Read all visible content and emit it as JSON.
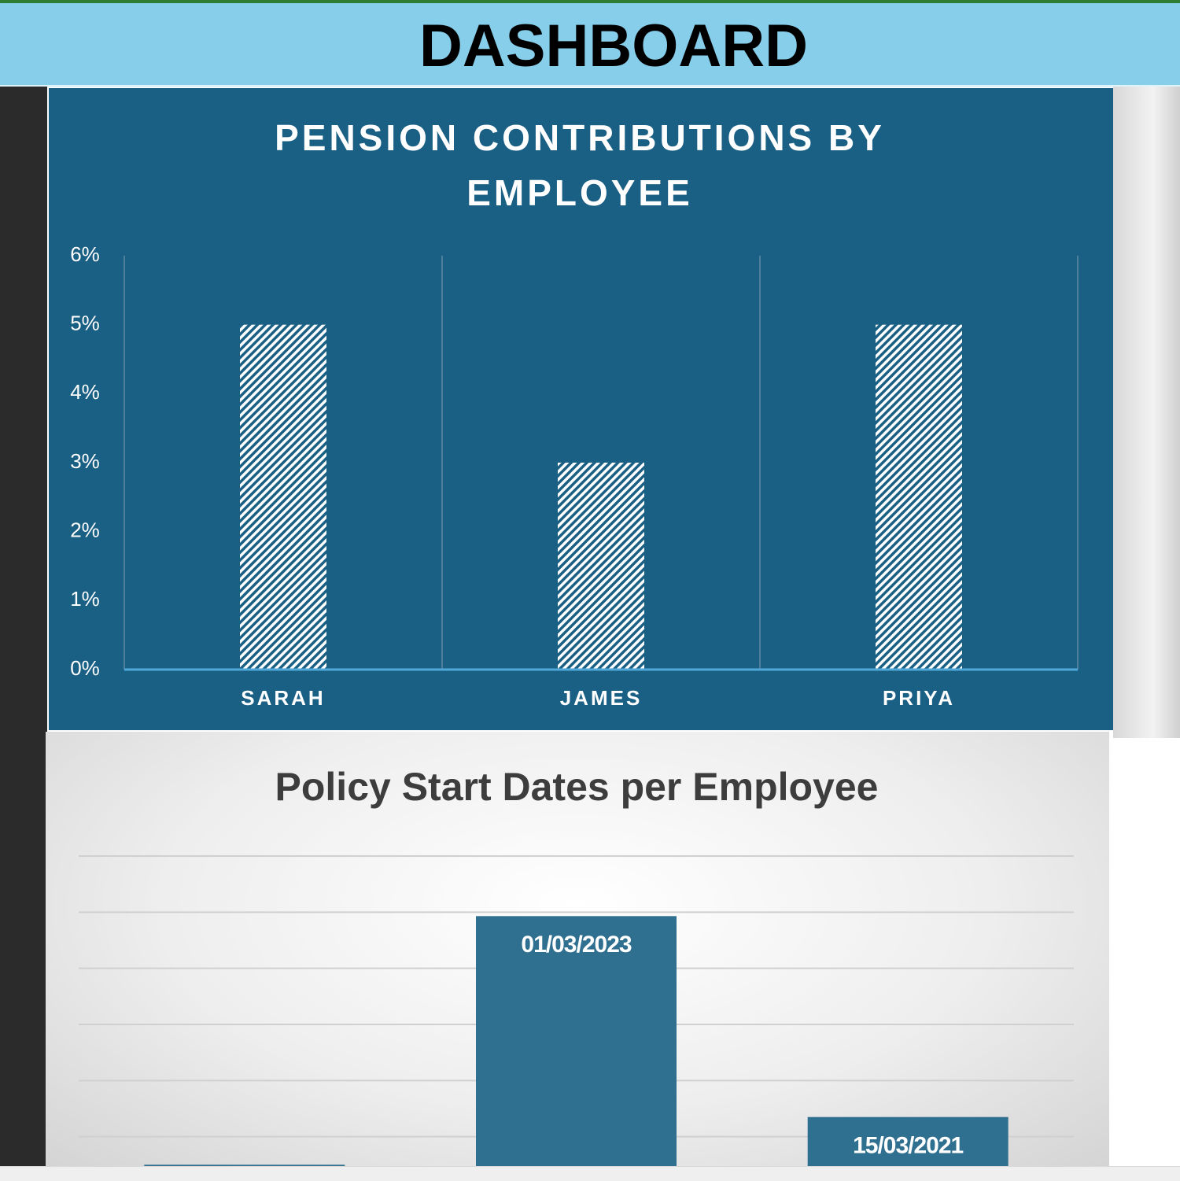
{
  "header": {
    "title": "DASHBOARD"
  },
  "chart_data": [
    {
      "type": "bar",
      "title": "PENSION CONTRIBUTIONS BY EMPLOYEE",
      "categories": [
        "SARAH",
        "JAMES",
        "PRIYA"
      ],
      "values": [
        5,
        3,
        5
      ],
      "color": "#ffffff",
      "fill_pattern": "hatch",
      "category_dividers": true,
      "ylim": [
        0,
        6
      ],
      "yticks": [
        {
          "value": 0,
          "label": "0%"
        },
        {
          "value": 1,
          "label": "1%"
        },
        {
          "value": 2,
          "label": "2%"
        },
        {
          "value": 3,
          "label": "3%"
        },
        {
          "value": 4,
          "label": "4%"
        },
        {
          "value": 5,
          "label": "5%"
        },
        {
          "value": 6,
          "label": "6%"
        }
      ]
    },
    {
      "type": "bar",
      "title": "Policy Start Dates per Employee",
      "categories": [
        null,
        null,
        null
      ],
      "values": [
        44100,
        44986,
        44270
      ],
      "value_labels": [
        null,
        "01/03/2023",
        "15/03/2021"
      ],
      "color": "#2f6f8f",
      "grid": true,
      "ylim": [
        44000,
        45200
      ],
      "yticks": [
        44200,
        44400,
        44600,
        44800,
        45000,
        45200
      ]
    }
  ]
}
